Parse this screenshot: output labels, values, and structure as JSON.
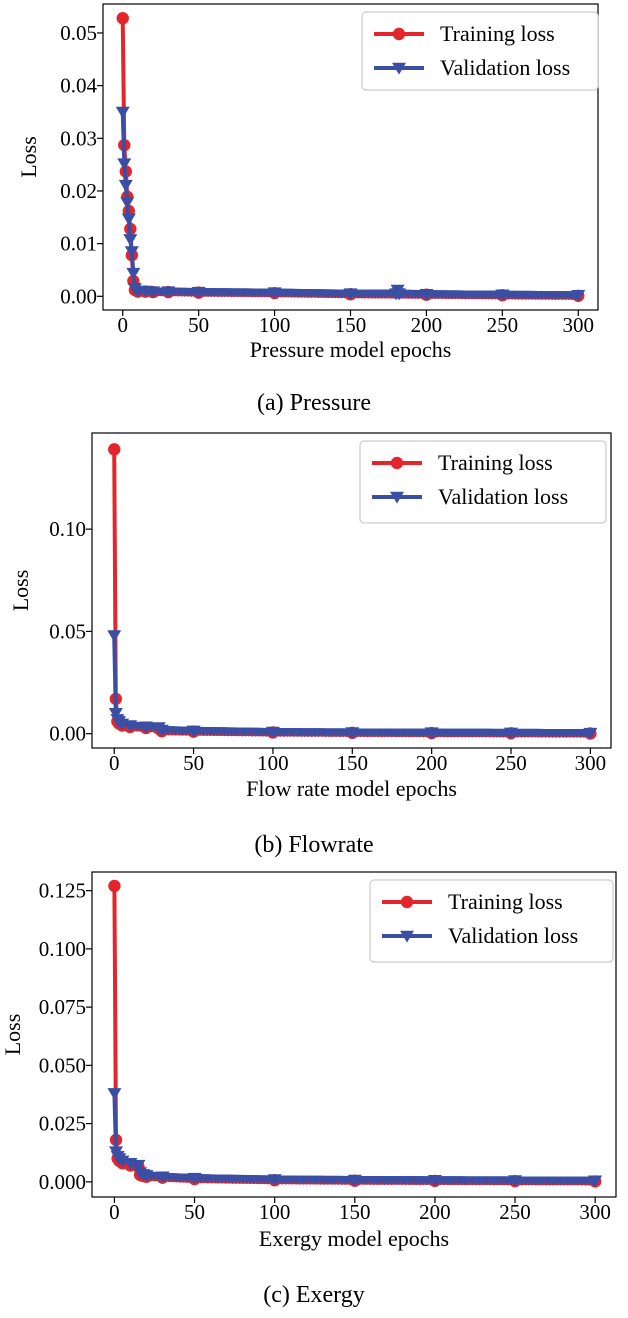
{
  "colors": {
    "training": "#e3262b",
    "validation": "#3a4fa3",
    "axis": "#000000"
  },
  "chart_data": [
    {
      "type": "line",
      "caption": "(a) Pressure",
      "xlabel": "Pressure model epochs",
      "ylabel": "Loss",
      "xlim": [
        -13,
        313
      ],
      "ylim": [
        -0.0026,
        0.0555
      ],
      "xticks": [
        0,
        50,
        100,
        150,
        200,
        250,
        300
      ],
      "xtick_labels": [
        "0",
        "50",
        "100",
        "150",
        "200",
        "250",
        "300"
      ],
      "yticks": [
        0.0,
        0.01,
        0.02,
        0.03,
        0.04,
        0.05
      ],
      "ytick_labels": [
        "0.00",
        "0.01",
        "0.02",
        "0.03",
        "0.04",
        "0.05"
      ],
      "legend_position": "top-right",
      "series": [
        {
          "name": "Training loss",
          "marker": "circle",
          "x": [
            0,
            1,
            2,
            3,
            4,
            5,
            6,
            7,
            8,
            10,
            15,
            20,
            30,
            50,
            100,
            150,
            200,
            250,
            300
          ],
          "y": [
            0.0528,
            0.0287,
            0.0237,
            0.0189,
            0.0162,
            0.0128,
            0.0078,
            0.0029,
            0.0012,
            0.0009,
            0.0009,
            0.0008,
            0.0008,
            0.0007,
            0.0006,
            0.0004,
            0.0003,
            0.0002,
            0.0001
          ]
        },
        {
          "name": "Validation loss",
          "marker": "triangle-down",
          "x": [
            0,
            1,
            2,
            3,
            4,
            5,
            6,
            7,
            8,
            10,
            15,
            20,
            30,
            50,
            100,
            150,
            180,
            181,
            182,
            200,
            250,
            300
          ],
          "y": [
            0.035,
            0.0252,
            0.0211,
            0.0178,
            0.0147,
            0.0108,
            0.0085,
            0.0044,
            0.0015,
            0.001,
            0.001,
            0.0009,
            0.0009,
            0.0008,
            0.0007,
            0.0005,
            0.0005,
            0.0012,
            0.0005,
            0.0004,
            0.0003,
            0.0002
          ]
        }
      ]
    },
    {
      "type": "line",
      "caption": "(b) Flowrate",
      "xlabel": "Flow rate model epochs",
      "ylabel": "Loss",
      "xlim": [
        -14,
        313
      ],
      "ylim": [
        -0.007,
        0.147
      ],
      "xticks": [
        0,
        50,
        100,
        150,
        200,
        250,
        300
      ],
      "xtick_labels": [
        "0",
        "50",
        "100",
        "150",
        "200",
        "250",
        "300"
      ],
      "yticks": [
        0.0,
        0.05,
        0.1
      ],
      "ytick_labels": [
        "0.00",
        "0.05",
        "0.10"
      ],
      "legend_position": "top-right",
      "series": [
        {
          "name": "Training loss",
          "marker": "circle",
          "x": [
            0,
            1,
            2,
            3,
            5,
            10,
            20,
            28,
            30,
            50,
            100,
            150,
            200,
            250,
            300
          ],
          "y": [
            0.139,
            0.017,
            0.006,
            0.005,
            0.004,
            0.0033,
            0.0028,
            0.0025,
            0.0012,
            0.001,
            0.0006,
            0.0004,
            0.0003,
            0.0002,
            0.0001
          ]
        },
        {
          "name": "Validation loss",
          "marker": "triangle-down",
          "x": [
            0,
            1,
            2,
            3,
            5,
            10,
            20,
            28,
            30,
            50,
            100,
            150,
            200,
            250,
            300
          ],
          "y": [
            0.048,
            0.01,
            0.007,
            0.006,
            0.0048,
            0.004,
            0.0034,
            0.003,
            0.0018,
            0.0014,
            0.0008,
            0.0006,
            0.0005,
            0.0004,
            0.0003
          ]
        }
      ]
    },
    {
      "type": "line",
      "caption": "(c) Exergy",
      "xlabel": "Exergy model epochs",
      "ylabel": "Loss",
      "xlim": [
        -14,
        313
      ],
      "ylim": [
        -0.0065,
        0.133
      ],
      "xticks": [
        0,
        50,
        100,
        150,
        200,
        250,
        300
      ],
      "xtick_labels": [
        "0",
        "50",
        "100",
        "150",
        "200",
        "250",
        "300"
      ],
      "yticks": [
        0.0,
        0.025,
        0.05,
        0.075,
        0.1,
        0.125
      ],
      "ytick_labels": [
        "0.000",
        "0.025",
        "0.050",
        "0.075",
        "0.100",
        "0.125"
      ],
      "legend_position": "top-right",
      "series": [
        {
          "name": "Training loss",
          "marker": "circle",
          "x": [
            0,
            1,
            2,
            3,
            5,
            10,
            15,
            16,
            18,
            20,
            30,
            50,
            100,
            150,
            200,
            250,
            300
          ],
          "y": [
            0.127,
            0.018,
            0.01,
            0.009,
            0.008,
            0.007,
            0.0065,
            0.003,
            0.0025,
            0.0022,
            0.0018,
            0.0012,
            0.0007,
            0.0005,
            0.0004,
            0.0003,
            0.0002
          ]
        },
        {
          "name": "Validation loss",
          "marker": "triangle-down",
          "x": [
            0,
            1,
            2,
            3,
            5,
            10,
            15,
            16,
            18,
            20,
            30,
            50,
            100,
            150,
            200,
            250,
            300
          ],
          "y": [
            0.038,
            0.013,
            0.011,
            0.01,
            0.009,
            0.008,
            0.0072,
            0.004,
            0.0032,
            0.0028,
            0.0022,
            0.0016,
            0.001,
            0.0008,
            0.0007,
            0.0006,
            0.0005
          ]
        }
      ]
    }
  ]
}
